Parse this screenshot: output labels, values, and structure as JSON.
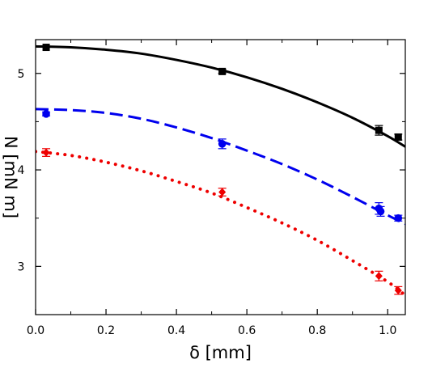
{
  "chart_data": {
    "type": "scatter",
    "title": "",
    "xlabel": "δ [mm]",
    "ylabel": "N [mN m]",
    "xlim": [
      0.0,
      1.05
    ],
    "ylim": [
      2.5,
      5.35
    ],
    "xticks": [
      0.0,
      0.2,
      0.4,
      0.6,
      0.8,
      1.0
    ],
    "xtick_labels": [
      "0.0",
      "0.2",
      "0.4",
      "0.6",
      "0.8",
      "1.0"
    ],
    "yticks": [
      3,
      4,
      5
    ],
    "ytick_labels": [
      "3",
      "4",
      "5"
    ],
    "grid": false,
    "legend": "none",
    "series": [
      {
        "color": "#000000",
        "marker": "square",
        "line_style": "solid",
        "points": [
          {
            "x": 0.03,
            "y": 5.27,
            "err": 0.0
          },
          {
            "x": 0.53,
            "y": 5.02,
            "err": 0.02
          },
          {
            "x": 0.975,
            "y": 4.41,
            "err": 0.05
          },
          {
            "x": 1.03,
            "y": 4.34,
            "err": 0.03
          }
        ],
        "fit": {
          "x": [
            0.0,
            0.1,
            0.2,
            0.3,
            0.4,
            0.5,
            0.6,
            0.7,
            0.8,
            0.9,
            1.0,
            1.05
          ],
          "y": [
            5.28,
            5.27,
            5.245,
            5.205,
            5.14,
            5.06,
            4.96,
            4.84,
            4.7,
            4.54,
            4.35,
            4.24
          ]
        }
      },
      {
        "color": "#0000ee",
        "marker": "circle",
        "line_style": "dashed",
        "points": [
          {
            "x": 0.03,
            "y": 4.58,
            "err": 0.02
          },
          {
            "x": 0.53,
            "y": 4.27,
            "err": 0.05
          },
          {
            "x": 0.975,
            "y": 3.6,
            "err": 0.06
          },
          {
            "x": 0.98,
            "y": 3.57,
            "err": 0.05
          },
          {
            "x": 1.03,
            "y": 3.5,
            "err": 0.03
          }
        ],
        "fit": {
          "x": [
            0.0,
            0.1,
            0.2,
            0.3,
            0.4,
            0.5,
            0.6,
            0.7,
            0.8,
            0.9,
            1.0,
            1.05
          ],
          "y": [
            4.63,
            4.62,
            4.59,
            4.53,
            4.44,
            4.33,
            4.2,
            4.06,
            3.9,
            3.72,
            3.53,
            3.44
          ]
        }
      },
      {
        "color": "#ee0000",
        "marker": "diamond",
        "line_style": "dotted",
        "points": [
          {
            "x": 0.03,
            "y": 4.18,
            "err": 0.04
          },
          {
            "x": 0.53,
            "y": 3.77,
            "err": 0.04
          },
          {
            "x": 0.975,
            "y": 2.9,
            "err": 0.05
          },
          {
            "x": 1.03,
            "y": 2.75,
            "err": 0.04
          }
        ],
        "fit": {
          "x": [
            0.0,
            0.1,
            0.2,
            0.3,
            0.4,
            0.5,
            0.6,
            0.7,
            0.8,
            0.9,
            1.0,
            1.05
          ],
          "y": [
            4.19,
            4.15,
            4.08,
            3.99,
            3.88,
            3.76,
            3.61,
            3.45,
            3.27,
            3.06,
            2.84,
            2.7
          ]
        }
      }
    ]
  }
}
